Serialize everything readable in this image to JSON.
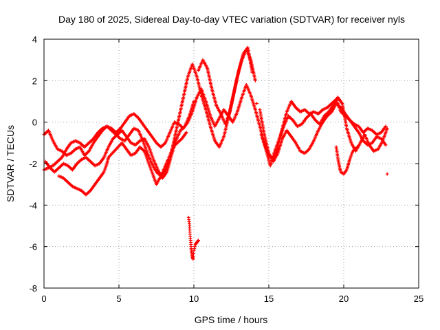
{
  "chart_data": {
    "type": "scatter",
    "title": "Day 180 of 2025, Sidereal Day-to-day VTEC variation (SDTVAR) for receiver nyls",
    "xlabel": "GPS time / hours",
    "ylabel": "SDTVAR / TECUs",
    "xlim": [
      0,
      25
    ],
    "ylim": [
      -8,
      4
    ],
    "xticks": [
      "0",
      "5",
      "10",
      "15",
      "20",
      "25"
    ],
    "yticks": [
      "4",
      "2",
      "0",
      "-2",
      "-4",
      "-6",
      "-8"
    ],
    "grid": true,
    "marker": "plus",
    "color": "#ff0000",
    "series": [
      {
        "name": "track-a",
        "points": [
          [
            0.0,
            -0.6
          ],
          [
            0.3,
            -0.4
          ],
          [
            0.6,
            -0.9
          ],
          [
            0.9,
            -1.3
          ],
          [
            1.2,
            -1.4
          ],
          [
            1.5,
            -1.6
          ],
          [
            1.8,
            -1.5
          ],
          [
            2.1,
            -1.3
          ],
          [
            2.4,
            -1.2
          ],
          [
            2.7,
            -1.6
          ],
          [
            3.0,
            -1.4
          ],
          [
            3.3,
            -1.0
          ],
          [
            3.6,
            -0.7
          ],
          [
            3.9,
            -0.4
          ],
          [
            4.2,
            -0.2
          ],
          [
            4.5,
            -0.3
          ],
          [
            4.8,
            -0.5
          ],
          [
            5.1,
            -0.3
          ],
          [
            5.4,
            0.0
          ],
          [
            5.7,
            0.3
          ],
          [
            6.0,
            0.4
          ],
          [
            6.3,
            0.2
          ],
          [
            6.6,
            -0.1
          ],
          [
            6.9,
            -0.4
          ],
          [
            7.2,
            -0.7
          ],
          [
            7.5,
            -1.0
          ],
          [
            7.8,
            -1.2
          ],
          [
            8.1,
            -1.0
          ],
          [
            8.4,
            -0.5
          ],
          [
            8.7,
            0.0
          ],
          [
            9.0,
            -0.1
          ],
          [
            9.3,
            -0.3
          ],
          [
            9.6,
            0.0
          ],
          [
            9.9,
            0.5
          ],
          [
            10.2,
            1.2
          ],
          [
            10.5,
            1.6
          ],
          [
            10.8,
            1.0
          ],
          [
            11.1,
            0.3
          ],
          [
            11.4,
            -0.2
          ],
          [
            11.7,
            0.2
          ],
          [
            12.0,
            0.6
          ],
          [
            12.3,
            0.3
          ],
          [
            12.6,
            0.0
          ],
          [
            12.9,
            0.5
          ],
          [
            13.2,
            1.2
          ],
          [
            13.5,
            1.8
          ],
          [
            13.8,
            1.3
          ],
          [
            14.1,
            0.6
          ],
          [
            14.4,
            -0.2
          ],
          [
            14.7,
            -1.0
          ],
          [
            15.0,
            -1.6
          ],
          [
            15.3,
            -1.8
          ],
          [
            15.6,
            -1.2
          ],
          [
            15.9,
            -0.3
          ],
          [
            16.2,
            0.5
          ],
          [
            16.5,
            1.0
          ],
          [
            16.8,
            0.7
          ],
          [
            17.1,
            0.5
          ],
          [
            17.4,
            0.6
          ],
          [
            17.7,
            0.4
          ],
          [
            18.0,
            0.5
          ],
          [
            18.3,
            0.4
          ],
          [
            18.6,
            0.6
          ],
          [
            18.9,
            0.7
          ],
          [
            19.2,
            0.9
          ],
          [
            19.5,
            1.1
          ],
          [
            19.8,
            0.5
          ],
          [
            20.1,
            0.3
          ],
          [
            20.4,
            0.1
          ],
          [
            20.7,
            -0.1
          ],
          [
            21.0,
            -0.2
          ],
          [
            21.3,
            -0.5
          ],
          [
            21.6,
            -0.3
          ],
          [
            21.9,
            -0.4
          ],
          [
            22.2,
            -0.6
          ],
          [
            22.5,
            -0.5
          ],
          [
            22.8,
            -0.2
          ]
        ]
      },
      {
        "name": "track-b",
        "points": [
          [
            0.0,
            -2.3
          ],
          [
            0.3,
            -2.2
          ],
          [
            0.6,
            -2.1
          ],
          [
            0.9,
            -1.9
          ],
          [
            1.2,
            -1.7
          ],
          [
            1.5,
            -1.3
          ],
          [
            1.8,
            -1.0
          ],
          [
            2.1,
            -0.9
          ],
          [
            2.4,
            -1.0
          ],
          [
            2.7,
            -1.2
          ],
          [
            3.0,
            -1.0
          ],
          [
            3.3,
            -0.8
          ],
          [
            3.6,
            -0.5
          ],
          [
            3.9,
            -0.3
          ],
          [
            4.2,
            -0.2
          ],
          [
            4.5,
            -0.4
          ],
          [
            4.8,
            -0.6
          ],
          [
            5.1,
            -0.8
          ],
          [
            5.4,
            -0.9
          ],
          [
            5.7,
            -0.6
          ],
          [
            6.0,
            -0.3
          ],
          [
            6.3,
            -0.4
          ],
          [
            6.6,
            -0.9
          ],
          [
            6.9,
            -1.5
          ],
          [
            7.2,
            -2.0
          ],
          [
            7.5,
            -2.4
          ],
          [
            7.8,
            -2.6
          ],
          [
            8.1,
            -2.3
          ],
          [
            8.4,
            -1.8
          ],
          [
            8.7,
            -0.8
          ],
          [
            9.0,
            0.2
          ],
          [
            9.3,
            1.2
          ],
          [
            9.6,
            2.2
          ],
          [
            9.9,
            2.8
          ],
          [
            10.2,
            2.2
          ],
          [
            10.5,
            1.3
          ],
          [
            10.8,
            0.6
          ],
          [
            11.1,
            -0.2
          ],
          [
            11.4,
            -0.9
          ],
          [
            11.7,
            -1.2
          ],
          [
            12.0,
            -0.7
          ],
          [
            12.3,
            0.2
          ],
          [
            12.6,
            1.2
          ],
          [
            12.9,
            2.2
          ],
          [
            13.2,
            3.0
          ],
          [
            13.5,
            3.5
          ],
          [
            13.8,
            3.0
          ],
          [
            14.1,
            2.0
          ],
          [
            14.4,
            0.6
          ],
          [
            14.7,
            -0.6
          ],
          [
            15.0,
            -1.5
          ],
          [
            15.3,
            -1.9
          ],
          [
            15.6,
            -1.5
          ],
          [
            15.9,
            -0.8
          ],
          [
            16.2,
            -0.4
          ],
          [
            16.5,
            -0.7
          ],
          [
            16.8,
            -1.0
          ],
          [
            17.1,
            -1.4
          ],
          [
            17.4,
            -1.5
          ],
          [
            17.7,
            -1.3
          ],
          [
            18.0,
            -0.9
          ],
          [
            18.3,
            -0.4
          ],
          [
            18.6,
            0.0
          ],
          [
            18.9,
            0.3
          ],
          [
            19.2,
            0.5
          ],
          [
            19.5,
            0.9
          ],
          [
            19.8,
            0.7
          ],
          [
            20.1,
            0.4
          ],
          [
            20.4,
            0.1
          ],
          [
            20.7,
            -0.2
          ],
          [
            21.0,
            -0.5
          ],
          [
            21.3,
            -0.9
          ],
          [
            21.6,
            -1.1
          ],
          [
            21.9,
            -1.0
          ],
          [
            22.2,
            -0.7
          ],
          [
            22.5,
            -0.8
          ],
          [
            22.8,
            -1.1
          ]
        ]
      },
      {
        "name": "track-c",
        "points": [
          [
            0.1,
            -1.9
          ],
          [
            0.4,
            -2.2
          ],
          [
            0.7,
            -2.4
          ],
          [
            1.0,
            -2.2
          ],
          [
            1.3,
            -2.0
          ],
          [
            1.6,
            -2.1
          ],
          [
            1.9,
            -2.3
          ],
          [
            2.2,
            -2.0
          ],
          [
            2.5,
            -1.8
          ],
          [
            2.8,
            -1.7
          ],
          [
            3.1,
            -1.9
          ],
          [
            3.4,
            -2.1
          ],
          [
            3.7,
            -2.0
          ],
          [
            4.0,
            -1.7
          ],
          [
            4.3,
            -1.2
          ],
          [
            4.6,
            -0.8
          ],
          [
            4.9,
            -0.6
          ],
          [
            5.2,
            -0.4
          ],
          [
            5.5,
            -0.7
          ],
          [
            5.8,
            -1.0
          ],
          [
            6.1,
            -1.1
          ],
          [
            6.4,
            -0.9
          ],
          [
            6.7,
            -0.8
          ],
          [
            7.0,
            -1.2
          ],
          [
            7.3,
            -1.8
          ],
          [
            7.6,
            -2.3
          ],
          [
            7.9,
            -2.7
          ],
          [
            8.2,
            -2.4
          ],
          [
            8.5,
            -1.6
          ],
          [
            8.8,
            -0.9
          ],
          [
            9.1,
            -0.4
          ],
          [
            9.4,
            -0.2
          ],
          [
            9.7,
            0.3
          ],
          [
            10.0,
            1.0
          ],
          [
            10.3,
            2.5
          ],
          [
            10.6,
            3.0
          ],
          [
            10.9,
            2.6
          ],
          [
            11.2,
            1.6
          ],
          [
            11.5,
            0.8
          ],
          [
            11.8,
            0.4
          ],
          [
            12.1,
            -0.1
          ],
          [
            12.4,
            0.5
          ],
          [
            12.7,
            1.5
          ],
          [
            13.0,
            2.5
          ],
          [
            13.3,
            3.3
          ],
          [
            13.6,
            3.6
          ],
          [
            13.9,
            2.4
          ],
          [
            14.2,
            0.9
          ],
          [
            14.5,
            -0.6
          ],
          [
            14.8,
            -1.3
          ],
          [
            15.1,
            -2.1
          ],
          [
            15.4,
            -1.4
          ],
          [
            15.7,
            -0.8
          ],
          [
            16.0,
            -0.2
          ],
          [
            16.3,
            0.3
          ],
          [
            16.6,
            0.1
          ],
          [
            16.9,
            -0.2
          ],
          [
            17.2,
            -0.1
          ],
          [
            17.5,
            0.2
          ],
          [
            17.8,
            0.4
          ],
          [
            18.1,
            0.1
          ],
          [
            18.4,
            -0.1
          ],
          [
            18.7,
            0.3
          ],
          [
            19.0,
            0.5
          ],
          [
            19.3,
            0.8
          ],
          [
            19.6,
            1.2
          ],
          [
            19.9,
            0.9
          ],
          [
            20.2,
            -0.3
          ],
          [
            20.5,
            -1.0
          ],
          [
            20.8,
            -1.4
          ],
          [
            21.1,
            -1.0
          ],
          [
            21.4,
            -0.6
          ],
          [
            21.7,
            -1.1
          ],
          [
            22.0,
            -1.4
          ],
          [
            22.3,
            -1.3
          ],
          [
            22.6,
            -0.9
          ],
          [
            22.9,
            -0.3
          ]
        ]
      },
      {
        "name": "track-d",
        "points": [
          [
            1.0,
            -2.6
          ],
          [
            1.3,
            -2.7
          ],
          [
            1.6,
            -2.9
          ],
          [
            1.9,
            -3.1
          ],
          [
            2.2,
            -3.2
          ],
          [
            2.5,
            -3.3
          ],
          [
            2.8,
            -3.5
          ],
          [
            3.1,
            -3.3
          ],
          [
            3.4,
            -3.0
          ],
          [
            3.7,
            -2.7
          ],
          [
            4.0,
            -2.4
          ],
          [
            4.2,
            -2.0
          ],
          [
            4.3,
            -1.7
          ],
          [
            5.2,
            -1.0
          ],
          [
            5.5,
            -1.3
          ],
          [
            5.8,
            -1.6
          ],
          [
            6.1,
            -1.5
          ],
          [
            6.4,
            -1.2
          ],
          [
            6.7,
            -1.4
          ],
          [
            7.0,
            -2.0
          ],
          [
            7.3,
            -2.6
          ],
          [
            7.5,
            -3.0
          ],
          [
            7.8,
            -2.6
          ],
          [
            8.1,
            -2.1
          ],
          [
            8.4,
            -1.6
          ],
          [
            8.6,
            -1.2
          ],
          [
            9.2,
            -0.8
          ],
          [
            9.5,
            -0.5
          ],
          [
            19.5,
            -1.2
          ],
          [
            19.6,
            -1.7
          ],
          [
            19.7,
            -2.1
          ],
          [
            19.8,
            -2.4
          ],
          [
            20.0,
            -2.5
          ],
          [
            20.2,
            -2.3
          ],
          [
            20.4,
            -1.8
          ],
          [
            20.6,
            -1.4
          ],
          [
            20.9,
            -1.2
          ]
        ]
      },
      {
        "name": "outliers",
        "points": [
          [
            9.65,
            -4.6
          ],
          [
            9.7,
            -4.9
          ],
          [
            9.72,
            -5.2
          ],
          [
            9.75,
            -5.5
          ],
          [
            9.8,
            -5.8
          ],
          [
            9.82,
            -6.1
          ],
          [
            9.85,
            -6.3
          ],
          [
            9.9,
            -6.5
          ],
          [
            9.95,
            -6.6
          ],
          [
            10.0,
            -6.2
          ],
          [
            10.1,
            -5.9
          ],
          [
            10.2,
            -5.8
          ],
          [
            10.3,
            -5.7
          ],
          [
            22.9,
            -2.5
          ]
        ]
      }
    ]
  }
}
